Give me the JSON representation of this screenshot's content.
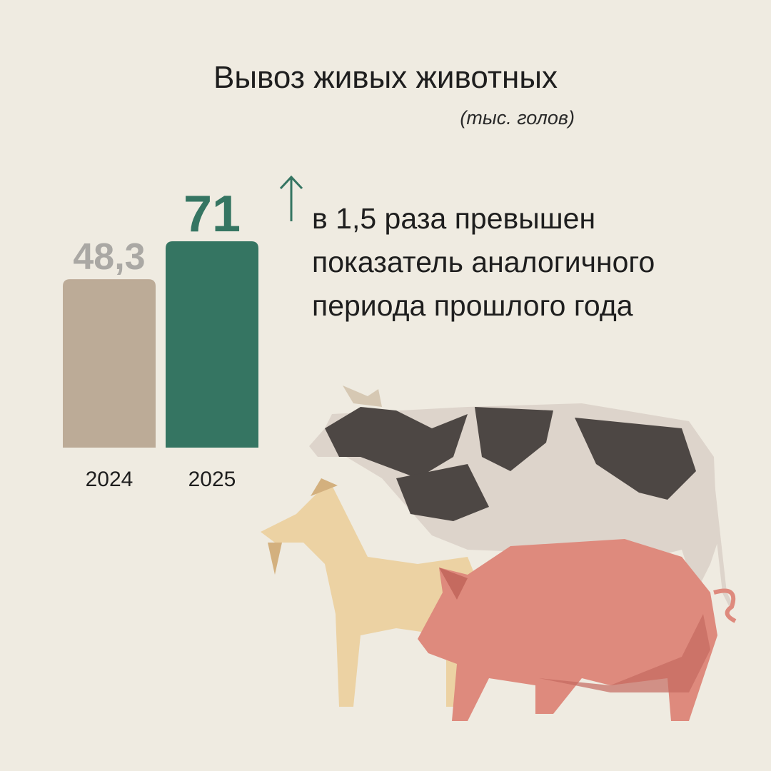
{
  "title": "Вывоз живых животных",
  "unit": "(тыс. голов)",
  "note": {
    "lines": [
      "в 1,5 раза превышен",
      "показатель аналогичного",
      "периода прошлого года"
    ],
    "icon": "arrow-up-icon"
  },
  "colors": {
    "background": "#efebe1",
    "bar_2024": "#bcab97",
    "bar_2025": "#357562",
    "label_2024": "#aaa8a4",
    "label_2025": "#357562"
  },
  "chart_data": {
    "type": "bar",
    "categories": [
      "2024",
      "2025"
    ],
    "values": [
      48.3,
      71
    ],
    "data_labels": [
      "48,3",
      "71"
    ],
    "title": "Вывоз живых животных",
    "ylabel": "(тыс. голов)",
    "grid": false
  }
}
